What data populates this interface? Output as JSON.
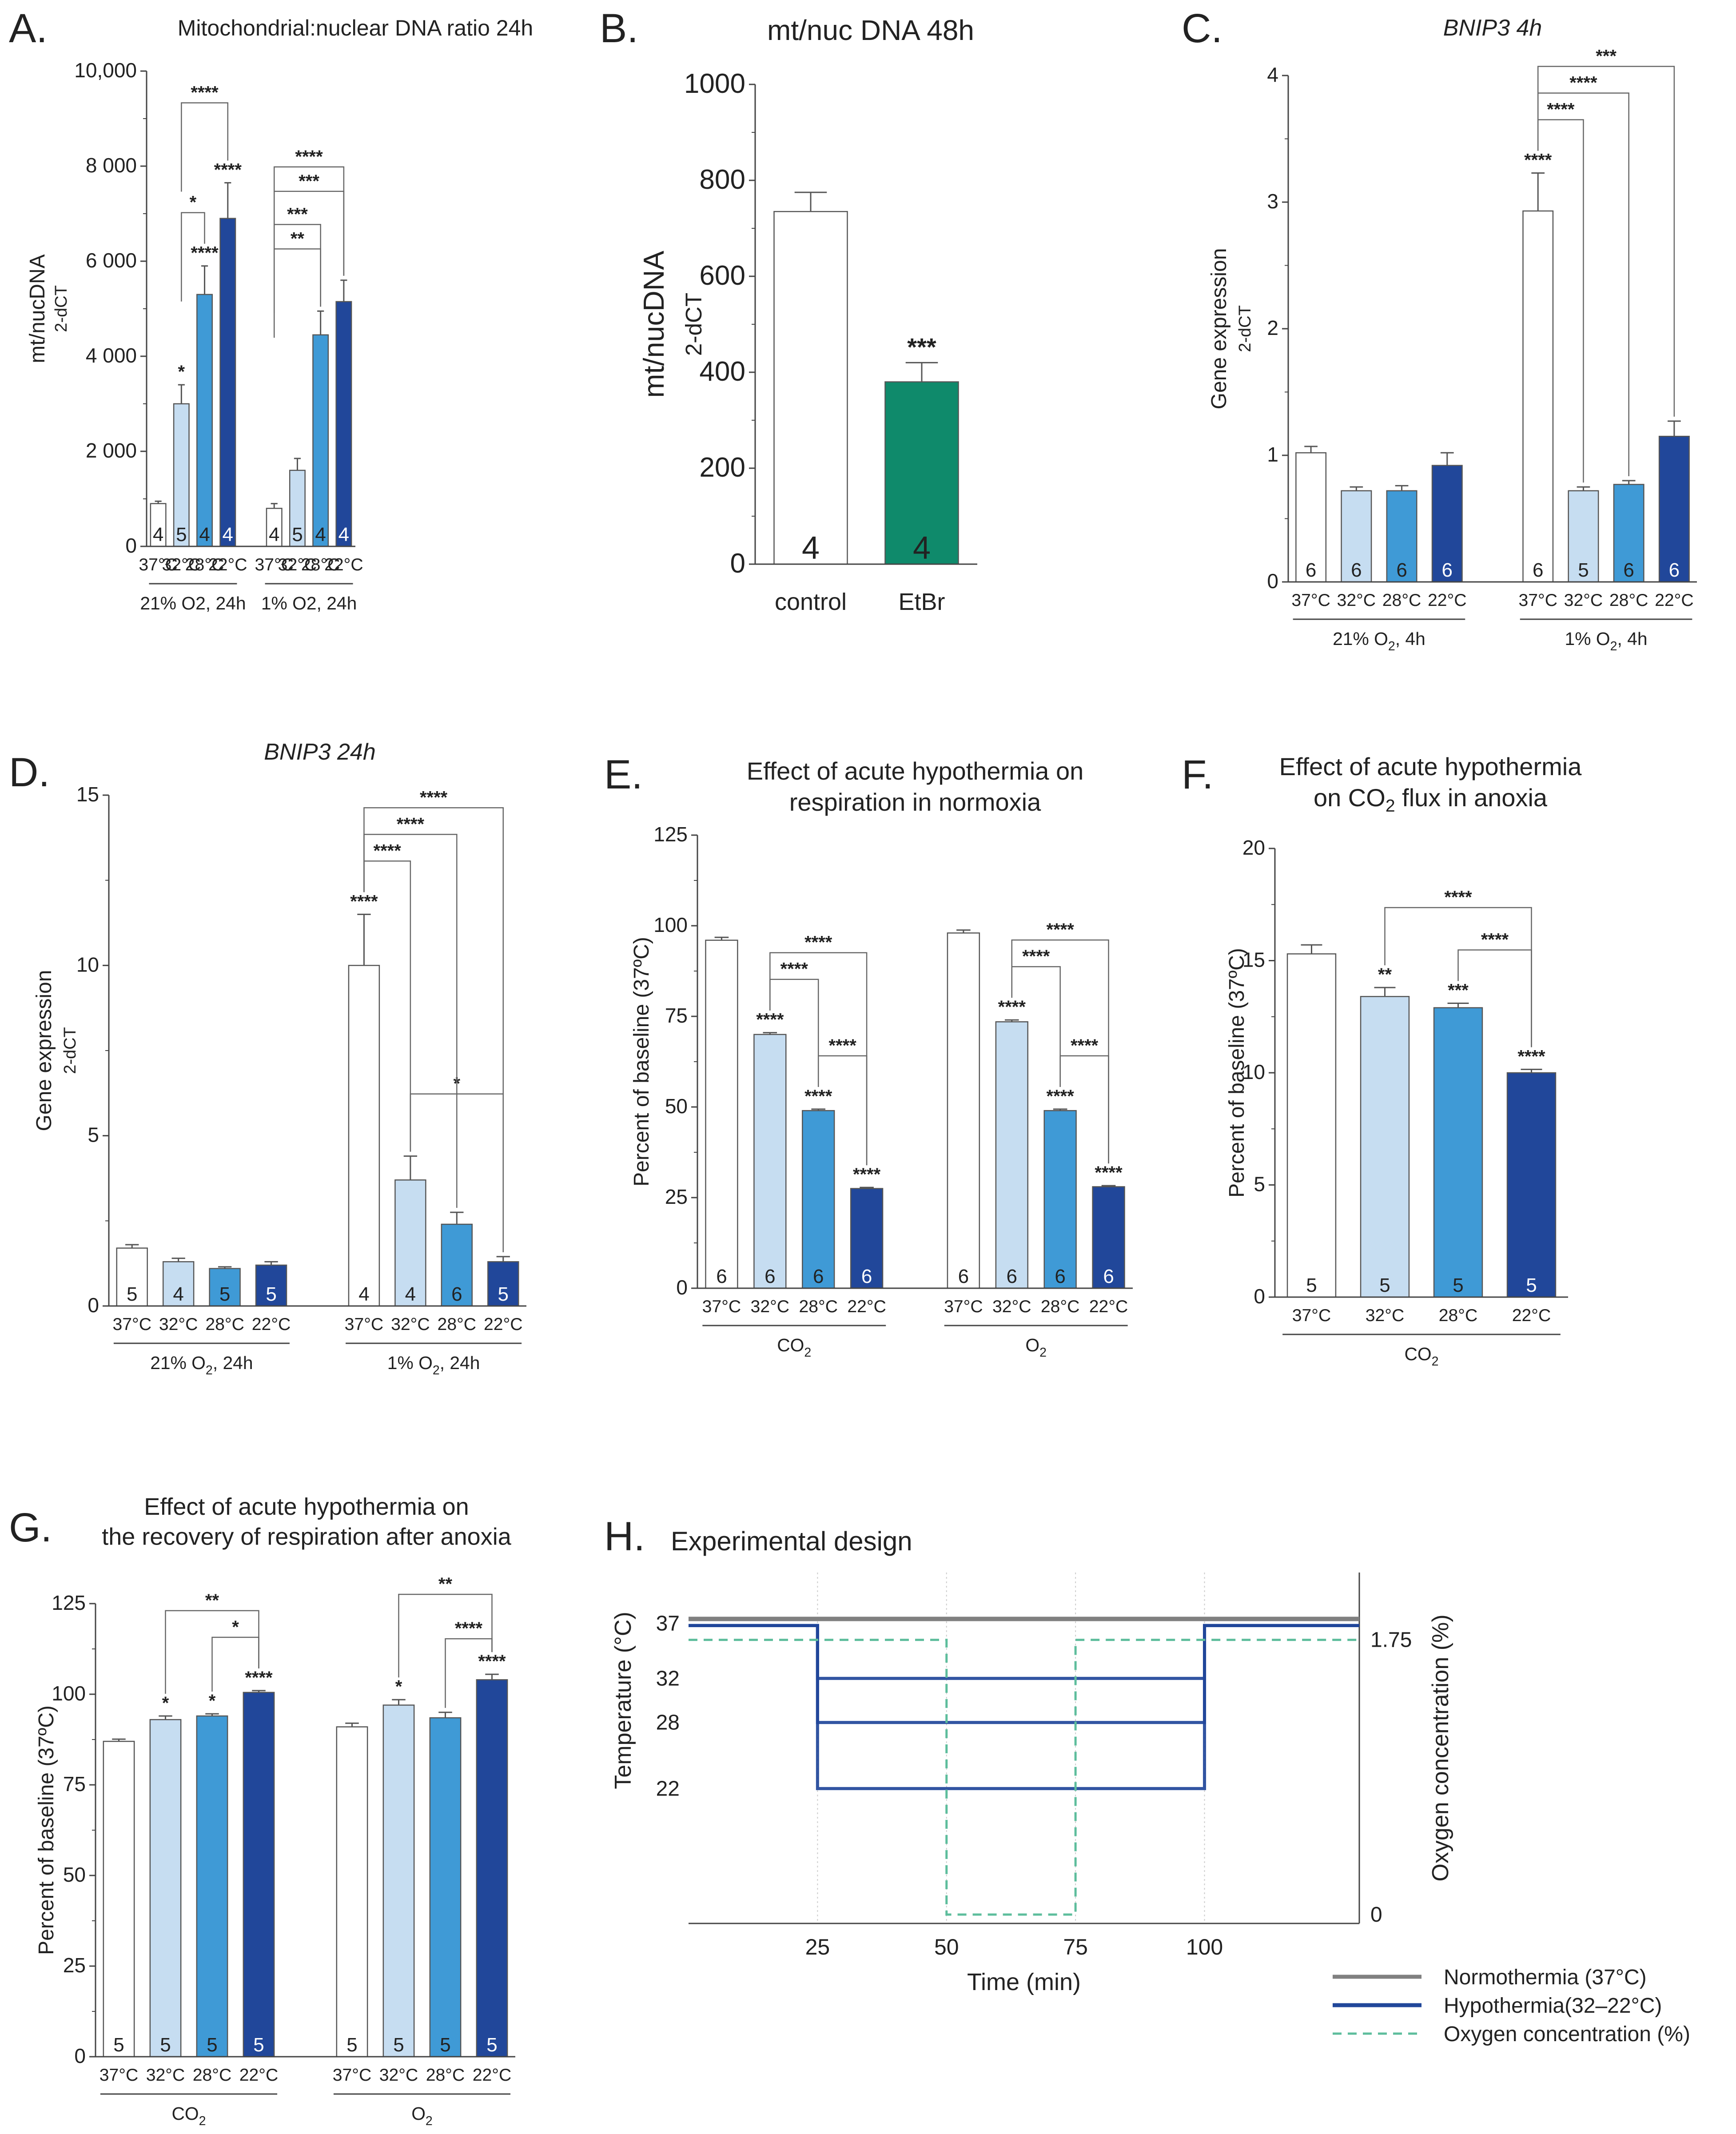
{
  "colors": {
    "c37": "#ffffff",
    "c32": "#c6ddf1",
    "c28": "#3f9ad6",
    "c22": "#21479a",
    "etbr": "#0f8a6b",
    "axis": "#444444",
    "grid": "#cccccc",
    "norm": "#808080",
    "oxy": "#5dbd9c"
  },
  "chart_data": [
    {
      "id": "A",
      "letter": "A.",
      "type": "bar",
      "title": "Mitochondrial:nuclear DNA ratio 24h",
      "ylabel": "mt/nucDNA",
      "ylabel2": "2-dCT",
      "ylim": [
        0,
        10000
      ],
      "yticks": [
        0,
        2000,
        4000,
        6000,
        8000,
        10000
      ],
      "ytick_labels": [
        "0",
        "2 000",
        "4 000",
        "6 000",
        "8 000",
        "10,000"
      ],
      "categories": [
        "37°C",
        "32°C",
        "28°C",
        "22°C",
        "37°C",
        "32°C",
        "28°C",
        "22°C"
      ],
      "values": [
        900,
        3000,
        5300,
        6900,
        800,
        1600,
        4450,
        5150
      ],
      "errors": [
        50,
        400,
        600,
        750,
        100,
        250,
        500,
        450
      ],
      "n": [
        "4",
        "5",
        "4",
        "4",
        "4",
        "5",
        "4",
        "4"
      ],
      "groups": [
        "21% O2, 24h",
        "1% O2, 24h"
      ],
      "bar_sig": [
        "",
        "*",
        "****",
        "****",
        "",
        "",
        "",
        ""
      ],
      "brackets": [
        {
          "from": 1,
          "to": 2,
          "label": "*"
        },
        {
          "from": 1,
          "to": 3,
          "label": "****"
        },
        {
          "from": 4,
          "to": 6,
          "label": "**"
        },
        {
          "from": 4,
          "to": 6,
          "label": "***"
        },
        {
          "from": 4,
          "to": 7,
          "label": "***"
        },
        {
          "from": 4,
          "to": 7,
          "label": "****"
        }
      ]
    },
    {
      "id": "B",
      "letter": "B.",
      "type": "bar",
      "title": "mt/nuc DNA 48h",
      "ylabel": "mt/nucDNA",
      "ylabel2": "2-dCT",
      "ylim": [
        0,
        1000
      ],
      "yticks": [
        0,
        200,
        400,
        600,
        800,
        1000
      ],
      "ytick_labels": [
        "0",
        "200",
        "400",
        "600",
        "800",
        "1000"
      ],
      "categories": [
        "control",
        "EtBr"
      ],
      "values": [
        735,
        380
      ],
      "errors": [
        40,
        40
      ],
      "n": [
        "4",
        "4"
      ],
      "bar_sig": [
        "",
        "***"
      ]
    },
    {
      "id": "C",
      "letter": "C.",
      "type": "bar",
      "title": "BNIP3 4h",
      "ylabel": "Gene expression",
      "ylabel2": "2-dCT",
      "ylim": [
        0,
        4
      ],
      "yticks": [
        0,
        1,
        2,
        3,
        4
      ],
      "ytick_labels": [
        "0",
        "1",
        "2",
        "3",
        "4"
      ],
      "categories": [
        "37°C",
        "32°C",
        "28°C",
        "22°C",
        "37°C",
        "32°C",
        "28°C",
        "22°C"
      ],
      "values": [
        1.02,
        0.72,
        0.72,
        0.92,
        2.93,
        0.72,
        0.77,
        1.15
      ],
      "errors": [
        0.05,
        0.03,
        0.04,
        0.1,
        0.3,
        0.03,
        0.03,
        0.12
      ],
      "n": [
        "6",
        "6",
        "6",
        "6",
        "6",
        "5",
        "6",
        "6"
      ],
      "groups": [
        "21% O2, 4h",
        "1% O2, 4h"
      ],
      "bar_sig": [
        "",
        "",
        "",
        "",
        "****",
        "",
        "",
        ""
      ],
      "brackets": [
        {
          "from": 4,
          "to": 5,
          "label": "****"
        },
        {
          "from": 4,
          "to": 6,
          "label": "****"
        },
        {
          "from": 4,
          "to": 7,
          "label": "***"
        }
      ]
    },
    {
      "id": "D",
      "letter": "D.",
      "type": "bar",
      "title": "BNIP3 24h",
      "ylabel": "Gene expression",
      "ylabel2": "2-dCT",
      "ylim": [
        0,
        15
      ],
      "yticks": [
        0,
        5,
        10,
        15
      ],
      "ytick_labels": [
        "0",
        "5",
        "10",
        "15"
      ],
      "categories": [
        "37°C",
        "32°C",
        "28°C",
        "22°C",
        "37°C",
        "32°C",
        "28°C",
        "22°C"
      ],
      "values": [
        1.7,
        1.3,
        1.1,
        1.2,
        10.0,
        3.7,
        2.4,
        1.3
      ],
      "errors": [
        0.1,
        0.1,
        0.05,
        0.1,
        1.5,
        0.7,
        0.35,
        0.15
      ],
      "n": [
        "5",
        "4",
        "5",
        "5",
        "4",
        "4",
        "6",
        "5"
      ],
      "groups": [
        "21% O2, 24h",
        "1% O2, 24h"
      ],
      "bar_sig": [
        "",
        "",
        "",
        "",
        "****",
        "",
        "",
        ""
      ],
      "brackets": [
        {
          "from": 5,
          "to": 7,
          "label": "*"
        },
        {
          "from": 4,
          "to": 5,
          "label": "****"
        },
        {
          "from": 4,
          "to": 6,
          "label": "****"
        },
        {
          "from": 4,
          "to": 7,
          "label": "****"
        }
      ]
    },
    {
      "id": "E",
      "letter": "E.",
      "type": "bar",
      "title": "Effect of acute hypothermia on",
      "title2": "respiration in normoxia",
      "ylabel": "Percent of baseline (37ºC)",
      "ylim": [
        0,
        125
      ],
      "yticks": [
        0,
        25,
        50,
        75,
        100,
        125
      ],
      "ytick_labels": [
        "0",
        "25",
        "50",
        "75",
        "100",
        "125"
      ],
      "categories": [
        "37°C",
        "32°C",
        "28°C",
        "22°C",
        "37°C",
        "32°C",
        "28°C",
        "22°C"
      ],
      "values": [
        96,
        70,
        49,
        27.5,
        98,
        73.5,
        49,
        28
      ],
      "errors": [
        0.8,
        0.5,
        0.4,
        0.3,
        0.8,
        0.5,
        0.4,
        0.3
      ],
      "n": [
        "6",
        "6",
        "6",
        "6",
        "6",
        "6",
        "6",
        "6"
      ],
      "groups": [
        "CO2",
        "O2"
      ],
      "bar_sig": [
        "",
        "****",
        "****",
        "****",
        "",
        "****",
        "****",
        "****"
      ],
      "brackets": [
        {
          "from": 2,
          "to": 3,
          "label": "****"
        },
        {
          "from": 1,
          "to": 2,
          "label": "****"
        },
        {
          "from": 1,
          "to": 3,
          "label": "****"
        },
        {
          "from": 6,
          "to": 7,
          "label": "****"
        },
        {
          "from": 5,
          "to": 6,
          "label": "****"
        },
        {
          "from": 5,
          "to": 7,
          "label": "****"
        }
      ]
    },
    {
      "id": "F",
      "letter": "F.",
      "type": "bar",
      "title": "Effect of acute hypothermia",
      "title2": "on CO2 flux in anoxia",
      "ylabel": "Percent of baseline (37ºC)",
      "ylim": [
        0,
        20
      ],
      "yticks": [
        0,
        5,
        10,
        15,
        20
      ],
      "ytick_labels": [
        "0",
        "5",
        "10",
        "15",
        "20"
      ],
      "categories": [
        "37°C",
        "32°C",
        "28°C",
        "22°C"
      ],
      "values": [
        15.3,
        13.4,
        12.9,
        10.0
      ],
      "errors": [
        0.4,
        0.4,
        0.2,
        0.15
      ],
      "n": [
        "5",
        "5",
        "5",
        "5"
      ],
      "groups": [
        "CO2"
      ],
      "bar_sig": [
        "",
        "**",
        "***",
        "****"
      ],
      "brackets": [
        {
          "from": 2,
          "to": 3,
          "label": "****"
        },
        {
          "from": 1,
          "to": 3,
          "label": "****"
        }
      ]
    },
    {
      "id": "G",
      "letter": "G.",
      "type": "bar",
      "title": "Effect of acute hypothermia on",
      "title2": "the recovery of respiration after anoxia",
      "ylabel": "Percent of baseline (37ºC)",
      "ylim": [
        0,
        125
      ],
      "yticks": [
        0,
        25,
        50,
        75,
        100,
        125
      ],
      "ytick_labels": [
        "0",
        "25",
        "50",
        "75",
        "100",
        "125"
      ],
      "categories": [
        "37°C",
        "32°C",
        "28°C",
        "22°C",
        "37°C",
        "32°C",
        "28°C",
        "22°C"
      ],
      "values": [
        87,
        93,
        94,
        100.5,
        91,
        97,
        93.5,
        104
      ],
      "errors": [
        0.6,
        1.0,
        0.6,
        0.5,
        1.0,
        1.5,
        1.5,
        1.5
      ],
      "n": [
        "5",
        "5",
        "5",
        "5",
        "5",
        "5",
        "5",
        "5"
      ],
      "groups": [
        "CO2",
        "O2"
      ],
      "bar_sig": [
        "",
        "*",
        "*",
        "****",
        "",
        "*",
        "",
        "****"
      ],
      "brackets": [
        {
          "from": 2,
          "to": 3,
          "label": "*"
        },
        {
          "from": 1,
          "to": 3,
          "label": "**"
        },
        {
          "from": 6,
          "to": 7,
          "label": "****"
        },
        {
          "from": 5,
          "to": 7,
          "label": "**"
        }
      ]
    },
    {
      "id": "H",
      "letter": "H.",
      "type": "line",
      "title": "Experimental design",
      "xlabel": "Time (min)",
      "ylabel": "Temperature (°C)",
      "ylabel_right": "Oxygen concentration (%)",
      "xlim": [
        0,
        130
      ],
      "xticks": [
        25,
        50,
        75,
        100
      ],
      "yticks": [
        37,
        32,
        28,
        22
      ],
      "yticks_right": [
        "1.75",
        "0"
      ],
      "legend": [
        "Normothermia (37°C)",
        "Hypothermia(32–22°C)",
        "Oxygen concentration (%)"
      ]
    }
  ]
}
